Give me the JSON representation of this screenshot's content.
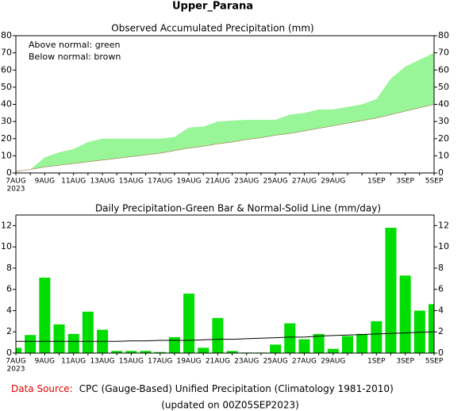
{
  "title": "Upper_Parana",
  "chart_data": [
    {
      "type": "area",
      "title": "Observed Accumulated Precipitation (mm)",
      "annotations": [
        "Above normal: green",
        "Below normal: brown"
      ],
      "categories": [
        "7AUG",
        null,
        "9AUG",
        null,
        "11AUG",
        null,
        "13AUG",
        null,
        "15AUG",
        null,
        "17AUG",
        null,
        "19AUG",
        null,
        "21AUG",
        null,
        "23AUG",
        null,
        "25AUG",
        null,
        "27AUG",
        null,
        "29AUG",
        null,
        null,
        "1SEP",
        null,
        "3SEP",
        null,
        "5SEP"
      ],
      "x_year": "2023",
      "series": [
        {
          "color": "#98f598",
          "values": [
            0.5,
            2,
            9,
            12,
            14,
            18,
            20,
            20,
            20,
            20,
            20,
            21,
            26.5,
            27,
            30,
            30.5,
            31,
            31,
            31,
            34,
            35,
            37,
            37,
            38.5,
            40,
            43,
            55,
            62,
            66,
            70
          ]
        },
        {
          "color": "#a0522d",
          "values": [
            1,
            2,
            3.5,
            4.5,
            5.5,
            6.5,
            7.5,
            8.5,
            9.5,
            10.5,
            11.5,
            13,
            14.5,
            15.5,
            17,
            18,
            19.5,
            20.5,
            22,
            23,
            24.5,
            26,
            27.5,
            29,
            30.5,
            32,
            34,
            36,
            38,
            40
          ]
        }
      ],
      "ylim": [
        0,
        80
      ],
      "yticks": [
        0,
        10,
        20,
        30,
        40,
        50,
        60,
        70,
        80
      ]
    },
    {
      "type": "bar",
      "title": "Daily Precipitation-Green Bar & Normal-Solid Line (mm/day)",
      "categories": [
        "7AUG",
        null,
        "9AUG",
        null,
        "11AUG",
        null,
        "13AUG",
        null,
        "15AUG",
        null,
        "17AUG",
        null,
        "19AUG",
        null,
        "21AUG",
        null,
        "23AUG",
        null,
        "25AUG",
        null,
        "27AUG",
        null,
        "29AUG",
        null,
        null,
        "1SEP",
        null,
        "3SEP",
        null,
        "5SEP"
      ],
      "x_year": "2023",
      "series": [
        {
          "color": "#00dd00",
          "values": [
            0.5,
            1.7,
            7.1,
            2.7,
            1.8,
            3.9,
            2.2,
            0.2,
            0.2,
            0.2,
            0.1,
            1.5,
            5.6,
            0.5,
            3.3,
            0.2,
            0.05,
            0.05,
            0.8,
            2.8,
            1.3,
            1.8,
            0.4,
            1.6,
            1.8,
            3.0,
            11.8,
            7.3,
            4.0,
            4.6
          ]
        },
        {
          "type": "line",
          "color": "#000000",
          "values": [
            1.1,
            1.1,
            1.1,
            1.1,
            1.1,
            1.1,
            1.1,
            1.1,
            1.15,
            1.15,
            1.2,
            1.2,
            1.2,
            1.25,
            1.3,
            1.3,
            1.35,
            1.4,
            1.45,
            1.5,
            1.5,
            1.6,
            1.65,
            1.7,
            1.75,
            1.8,
            1.85,
            1.9,
            1.95,
            2.0
          ]
        }
      ],
      "ylim": [
        0,
        13
      ],
      "yticks": [
        0,
        2,
        4,
        6,
        8,
        10,
        12
      ]
    }
  ],
  "footer": {
    "source_label": "Data Source:",
    "source": "CPC (Gauge-Based) Unified Precipitation (Climatology 1981-2010)",
    "updated": "(updated on 00Z05SEP2023)"
  }
}
